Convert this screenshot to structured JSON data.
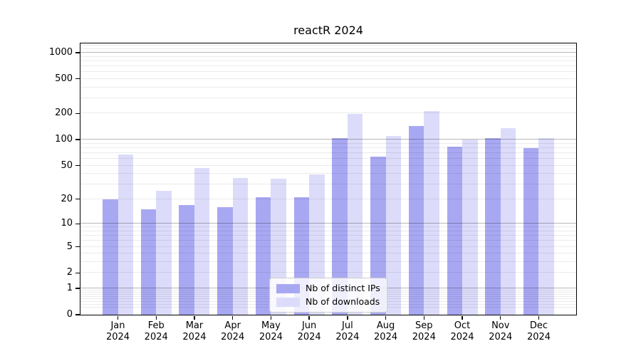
{
  "figure": {
    "background": "#ffffff"
  },
  "chart_data": {
    "type": "bar",
    "title": "reactR 2024",
    "categories": [
      "Jan",
      "Feb",
      "Mar",
      "Apr",
      "May",
      "Jun",
      "Jul",
      "Aug",
      "Sep",
      "Oct",
      "Nov",
      "Dec"
    ],
    "x_year": "2024",
    "series": [
      {
        "name": "Nb of distinct IPs",
        "color": "#a8a8f2",
        "values": [
          20,
          15,
          17,
          16,
          21,
          21,
          105,
          63,
          145,
          83,
          105,
          80
        ]
      },
      {
        "name": "Nb of downloads",
        "color": "#dcdcfa",
        "values": [
          67,
          25,
          47,
          36,
          35,
          39,
          198,
          110,
          215,
          100,
          135,
          105
        ]
      }
    ],
    "y_axis": {
      "scale": "log1p",
      "top_value": 1275,
      "tick_values": [
        0,
        1,
        2,
        5,
        10,
        20,
        50,
        100,
        200,
        500,
        1000
      ],
      "tick_labels": [
        "0",
        "1",
        "2",
        "5",
        "10",
        "20",
        "50",
        "100",
        "200",
        "500",
        "1000"
      ],
      "major_gridlines": [
        1,
        10,
        100,
        1000
      ],
      "minor_gridlines": [
        0.2,
        0.3,
        0.4,
        0.5,
        0.6,
        0.7,
        0.8,
        0.9,
        2,
        3,
        4,
        5,
        6,
        7,
        8,
        9,
        20,
        30,
        40,
        50,
        60,
        70,
        80,
        90,
        200,
        300,
        400,
        500,
        600,
        700,
        800,
        900,
        1100,
        1200
      ]
    },
    "x_axis": {
      "tick_count": 12
    },
    "legend": {
      "position": "lower center"
    },
    "grid": true
  }
}
